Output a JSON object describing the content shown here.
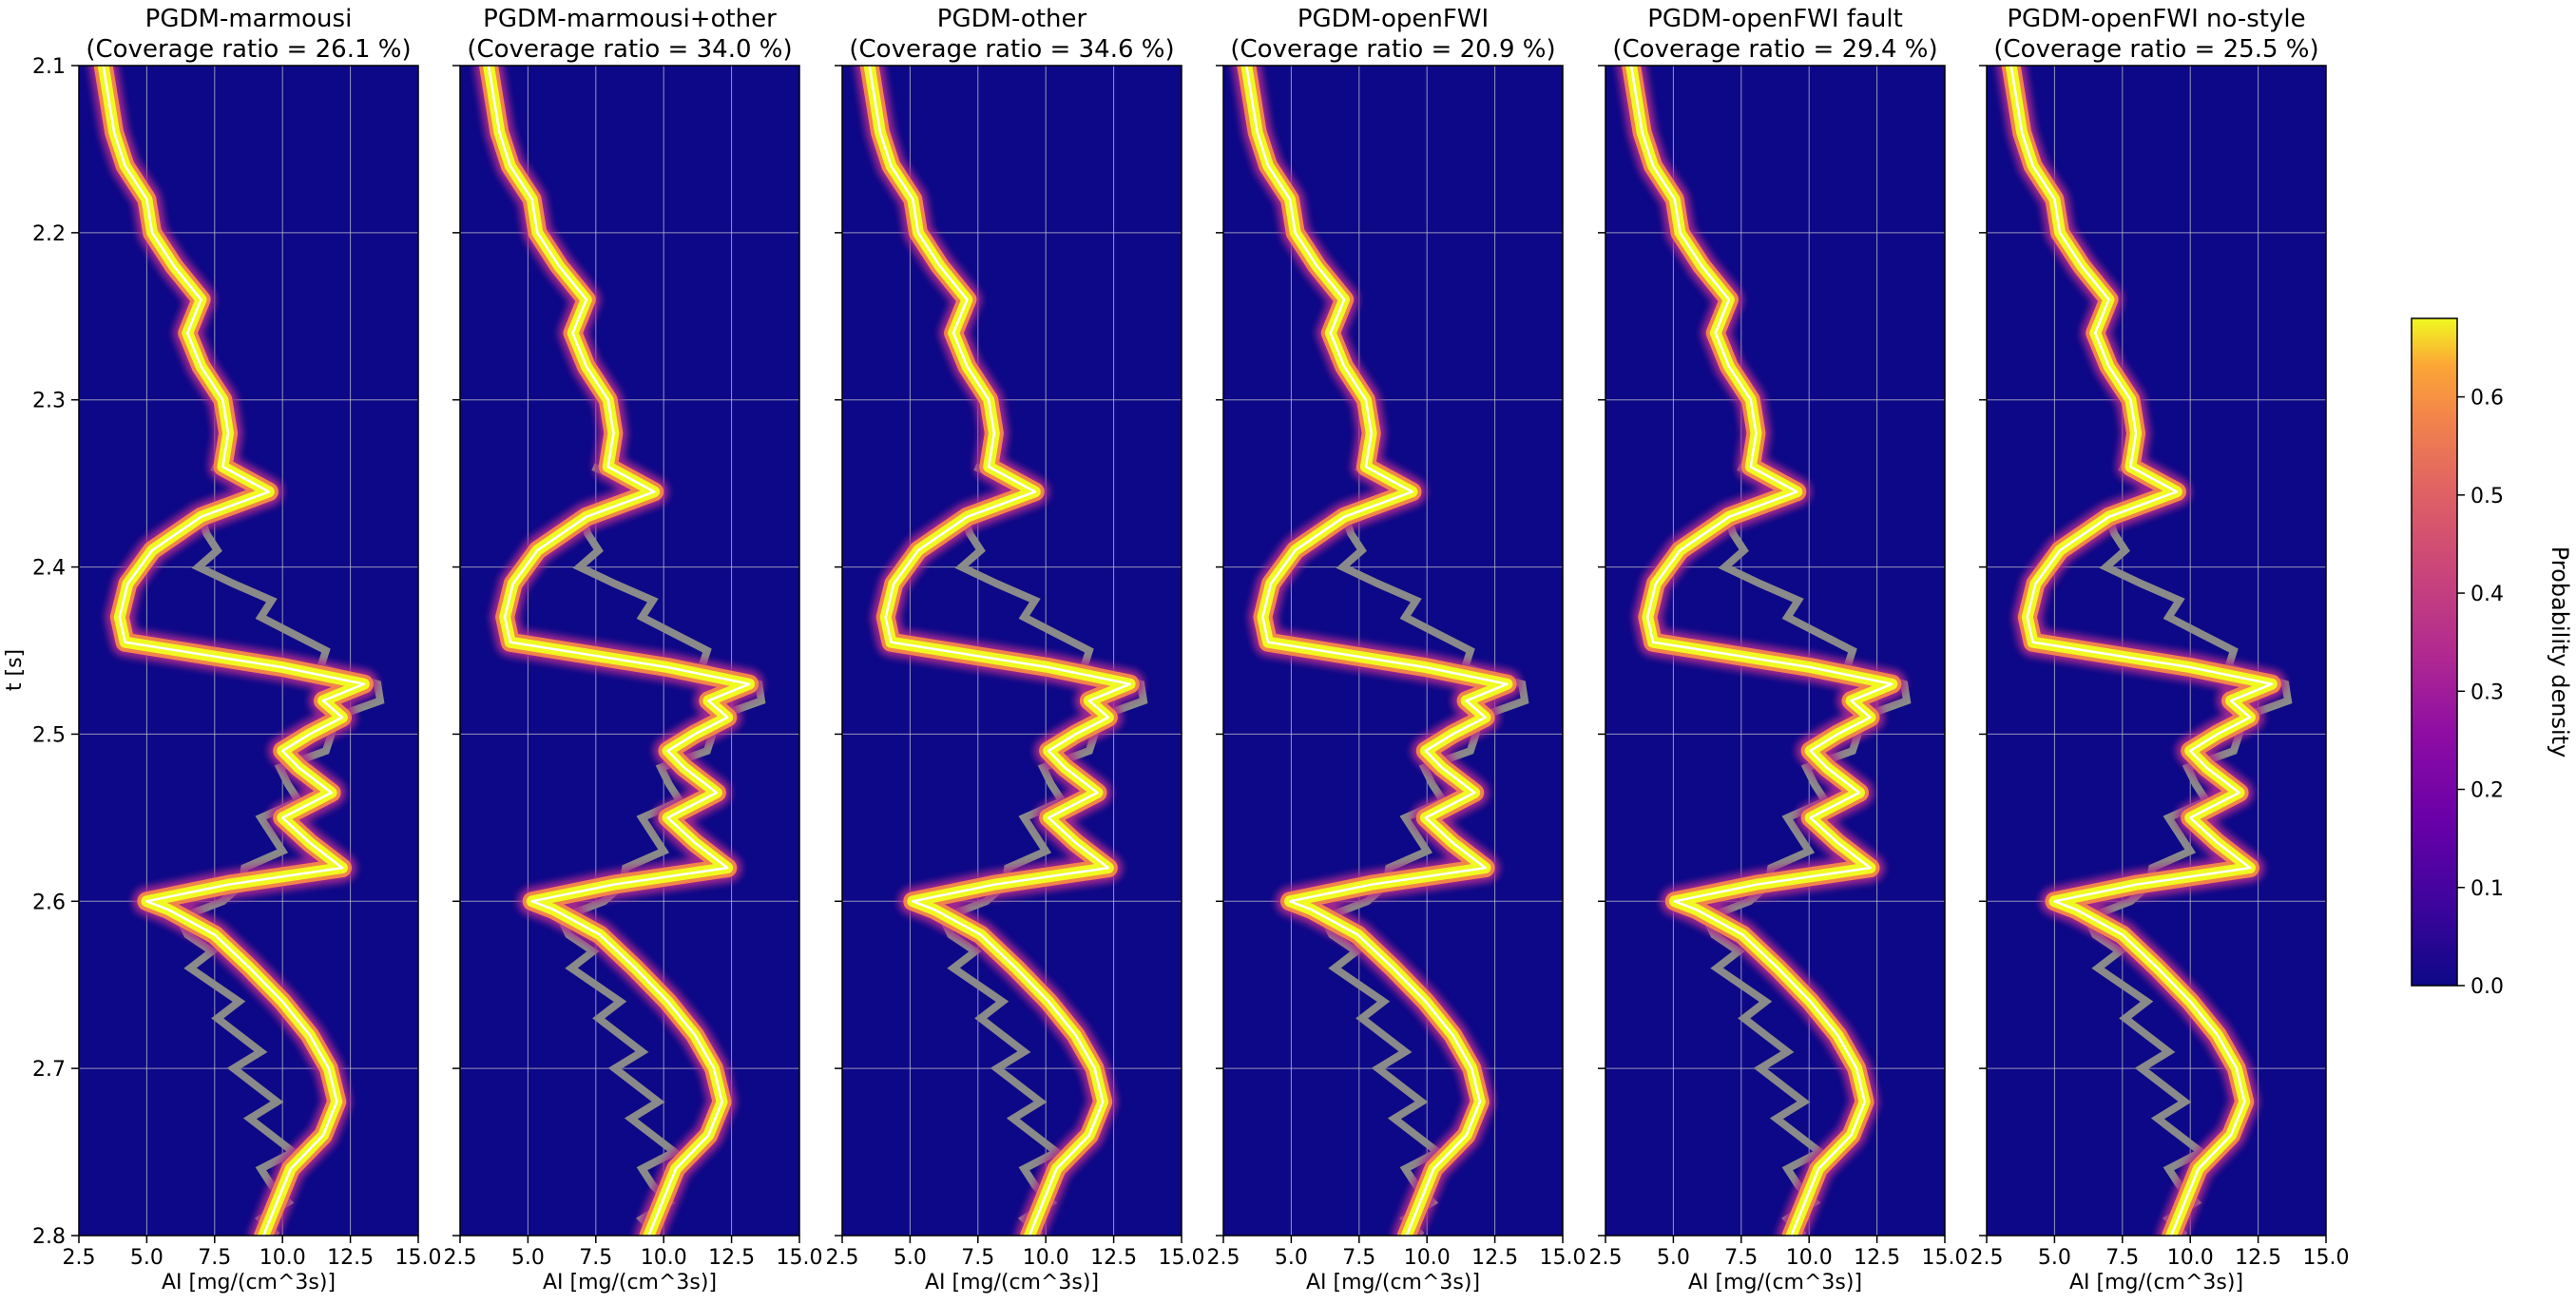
{
  "chart_data": {
    "type": "heatmap",
    "ylabel": "t [s]",
    "xlabel": "AI [mg/(cm^3s)]",
    "xlim": [
      2.5,
      15.0
    ],
    "ylim": [
      2.8,
      2.1
    ],
    "xticks": [
      "2.5",
      "5.0",
      "7.5",
      "10.0",
      "12.5",
      "15.0"
    ],
    "xticks_last_panel": [
      "2.5",
      "5.0",
      "7.5",
      "10.0",
      "12.5",
      "15.0"
    ],
    "yticks": [
      "2.1",
      "2.2",
      "2.3",
      "2.4",
      "2.5",
      "2.6",
      "2.7",
      "2.8"
    ],
    "grid": true,
    "colorbar": {
      "label": "Probability density",
      "range": [
        0.0,
        0.68
      ],
      "ticks": [
        "0.0",
        "0.1",
        "0.2",
        "0.3",
        "0.4",
        "0.5",
        "0.6"
      ],
      "colormap": "plasma"
    },
    "panels": [
      {
        "title": "PGDM-marmousi",
        "subtitle": "(Coverage ratio = 26.1 %)"
      },
      {
        "title": "PGDM-marmousi+other",
        "subtitle": "(Coverage ratio = 34.0 %)"
      },
      {
        "title": "PGDM-other",
        "subtitle": "(Coverage ratio = 34.6 %)"
      },
      {
        "title": "PGDM-openFWI",
        "subtitle": "(Coverage ratio = 20.9 %)"
      },
      {
        "title": "PGDM-openFWI fault",
        "subtitle": "(Coverage ratio = 29.4 %)"
      },
      {
        "title": "PGDM-openFWI no-style",
        "subtitle": "(Coverage ratio = 25.5 %)"
      }
    ],
    "trace_mean": {
      "t": [
        2.1,
        2.12,
        2.14,
        2.16,
        2.18,
        2.2,
        2.22,
        2.24,
        2.26,
        2.28,
        2.3,
        2.32,
        2.34,
        2.355,
        2.37,
        2.39,
        2.41,
        2.43,
        2.445,
        2.46,
        2.47,
        2.48,
        2.49,
        2.5,
        2.51,
        2.52,
        2.535,
        2.55,
        2.565,
        2.58,
        2.59,
        2.6,
        2.605,
        2.62,
        2.64,
        2.66,
        2.68,
        2.7,
        2.72,
        2.74,
        2.76,
        2.78,
        2.8
      ],
      "ai": [
        3.4,
        3.6,
        3.8,
        4.2,
        5.0,
        5.2,
        6.0,
        7.0,
        6.5,
        7.0,
        7.8,
        8.0,
        7.8,
        9.5,
        7.0,
        5.2,
        4.3,
        4.0,
        4.2,
        10.0,
        13.0,
        11.5,
        12.2,
        11.0,
        10.0,
        10.6,
        11.8,
        10.0,
        11.0,
        12.2,
        8.0,
        5.0,
        5.8,
        7.5,
        8.8,
        10.0,
        11.0,
        11.7,
        12.0,
        11.5,
        10.3,
        9.8,
        9.3
      ]
    },
    "observed_well_log": {
      "t": [
        2.34,
        2.35,
        2.36,
        2.37,
        2.38,
        2.39,
        2.4,
        2.41,
        2.42,
        2.43,
        2.44,
        2.45,
        2.46,
        2.47,
        2.48,
        2.49,
        2.5,
        2.51,
        2.52,
        2.53,
        2.54,
        2.55,
        2.56,
        2.57,
        2.58,
        2.59,
        2.6,
        2.61,
        2.62,
        2.63,
        2.64,
        2.65,
        2.66,
        2.67,
        2.68,
        2.69,
        2.7,
        2.71,
        2.72,
        2.73,
        2.74,
        2.75,
        2.76,
        2.77,
        2.78,
        2.79,
        2.8
      ],
      "ai": [
        8.0,
        8.8,
        8.5,
        7.6,
        7.2,
        7.0,
        7.5,
        8.2,
        9.0,
        9.8,
        10.4,
        11.0,
        12.0,
        13.5,
        13.0,
        12.5,
        11.8,
        11.0,
        10.5,
        10.2,
        10.0,
        9.8,
        9.6,
        9.4,
        9.2,
        8.5,
        7.2,
        6.8,
        6.5,
        6.8,
        7.2,
        7.5,
        7.8,
        8.2,
        8.4,
        8.6,
        8.8,
        9.0,
        9.2,
        9.4,
        9.6,
        9.8,
        9.8,
        9.6,
        9.6,
        9.8,
        9.8
      ]
    }
  }
}
